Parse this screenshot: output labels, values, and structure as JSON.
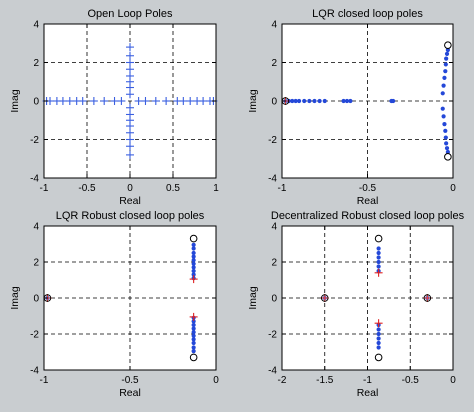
{
  "figure": {
    "background": "#c9cdd0"
  },
  "chart_data": [
    {
      "type": "scatter",
      "title": "Open Loop Poles",
      "xlabel": "Real",
      "ylabel": "Imag",
      "xlim": [
        -1,
        1
      ],
      "ylim": [
        -4,
        4
      ],
      "xticks": [
        -1,
        -0.5,
        0,
        0.5,
        1
      ],
      "xtick_labels": [
        "-1",
        "-0.5",
        "0",
        "0.5",
        "1"
      ],
      "yticks": [
        -4,
        -2,
        0,
        2,
        4
      ],
      "ytick_labels": [
        "-4",
        "-2",
        "0",
        "2",
        "4"
      ],
      "grid": true,
      "series": [
        {
          "marker": "plus",
          "color": "#3a5fe0",
          "points": [
            [
              -0.97,
              0
            ],
            [
              -0.93,
              0
            ],
            [
              -0.85,
              0
            ],
            [
              -0.78,
              0
            ],
            [
              -0.7,
              0
            ],
            [
              -0.62,
              0
            ],
            [
              -0.55,
              0
            ],
            [
              -0.42,
              0
            ],
            [
              -0.3,
              0
            ],
            [
              -0.18,
              0
            ],
            [
              -0.1,
              0
            ],
            [
              0.1,
              0
            ],
            [
              0.18,
              0
            ],
            [
              0.3,
              0
            ],
            [
              0.42,
              0
            ],
            [
              0.55,
              0
            ],
            [
              0.62,
              0
            ],
            [
              0.7,
              0
            ],
            [
              0.78,
              0
            ],
            [
              0.85,
              0
            ],
            [
              0.93,
              0
            ],
            [
              0.97,
              0
            ],
            [
              0,
              0.35
            ],
            [
              0,
              0.7
            ],
            [
              0,
              1.0
            ],
            [
              0,
              1.3
            ],
            [
              0,
              1.65
            ],
            [
              0,
              2.0
            ],
            [
              0,
              2.35
            ],
            [
              0,
              2.8
            ],
            [
              0,
              -0.35
            ],
            [
              0,
              -0.7
            ],
            [
              0,
              -1.0
            ],
            [
              0,
              -1.3
            ],
            [
              0,
              -1.65
            ],
            [
              0,
              -2.0
            ],
            [
              0,
              -2.35
            ],
            [
              0,
              -2.8
            ]
          ]
        }
      ]
    },
    {
      "type": "scatter",
      "title": "LQR closed loop poles",
      "xlabel": "Real",
      "ylabel": "Imag",
      "xlim": [
        -1,
        0
      ],
      "ylim": [
        -4,
        4
      ],
      "xticks": [
        -1,
        -0.5,
        0
      ],
      "xtick_labels": [
        "-1",
        "-0.5",
        "0"
      ],
      "yticks": [
        -4,
        -2,
        0,
        2,
        4
      ],
      "ytick_labels": [
        "-4",
        "-2",
        "0",
        "2",
        "4"
      ],
      "grid": true,
      "series": [
        {
          "marker": "dot",
          "color": "#2448d8",
          "points": [
            [
              -0.98,
              0
            ],
            [
              -0.96,
              0
            ],
            [
              -0.94,
              0
            ],
            [
              -0.92,
              0
            ],
            [
              -0.9,
              0
            ],
            [
              -0.87,
              0
            ],
            [
              -0.84,
              0
            ],
            [
              -0.81,
              0
            ],
            [
              -0.78,
              0
            ],
            [
              -0.75,
              0
            ],
            [
              -0.64,
              0
            ],
            [
              -0.62,
              0
            ],
            [
              -0.6,
              0
            ],
            [
              -0.36,
              0
            ],
            [
              -0.35,
              0
            ],
            [
              -0.06,
              0.4
            ],
            [
              -0.055,
              0.8
            ],
            [
              -0.05,
              1.2
            ],
            [
              -0.045,
              1.55
            ],
            [
              -0.042,
              1.9
            ],
            [
              -0.04,
              2.2
            ],
            [
              -0.035,
              2.45
            ],
            [
              -0.03,
              2.65
            ],
            [
              -0.06,
              -0.4
            ],
            [
              -0.055,
              -0.8
            ],
            [
              -0.05,
              -1.2
            ],
            [
              -0.045,
              -1.55
            ],
            [
              -0.042,
              -1.9
            ],
            [
              -0.04,
              -2.2
            ],
            [
              -0.035,
              -2.45
            ],
            [
              -0.03,
              -2.65
            ]
          ]
        },
        {
          "marker": "plus",
          "color": "#e02020",
          "points": [
            [
              -0.98,
              0
            ]
          ]
        },
        {
          "marker": "circle",
          "color": "#000000",
          "points": [
            [
              -0.98,
              0
            ],
            [
              -0.03,
              2.9
            ],
            [
              -0.03,
              -2.9
            ]
          ]
        }
      ]
    },
    {
      "type": "scatter",
      "title": "LQR Robust closed loop poles",
      "xlabel": "Real",
      "ylabel": "Imag",
      "xlim": [
        -1,
        0
      ],
      "ylim": [
        -4,
        4
      ],
      "xticks": [
        -1,
        -0.5,
        0
      ],
      "xtick_labels": [
        "-1",
        "-0.5",
        "0"
      ],
      "yticks": [
        -4,
        -2,
        0,
        2,
        4
      ],
      "ytick_labels": [
        "-4",
        "-2",
        "0",
        "2",
        "4"
      ],
      "grid": true,
      "series": [
        {
          "marker": "dot",
          "color": "#2448d8",
          "points": [
            [
              -0.98,
              0
            ],
            [
              -0.13,
              1.1
            ],
            [
              -0.13,
              1.3
            ],
            [
              -0.13,
              1.5
            ],
            [
              -0.13,
              1.7
            ],
            [
              -0.13,
              1.9
            ],
            [
              -0.13,
              2.1
            ],
            [
              -0.13,
              2.3
            ],
            [
              -0.13,
              2.5
            ],
            [
              -0.13,
              2.75
            ],
            [
              -0.13,
              2.95
            ],
            [
              -0.13,
              -1.1
            ],
            [
              -0.13,
              -1.3
            ],
            [
              -0.13,
              -1.5
            ],
            [
              -0.13,
              -1.7
            ],
            [
              -0.13,
              -1.9
            ],
            [
              -0.13,
              -2.1
            ],
            [
              -0.13,
              -2.3
            ],
            [
              -0.13,
              -2.5
            ],
            [
              -0.13,
              -2.75
            ],
            [
              -0.13,
              -2.95
            ]
          ]
        },
        {
          "marker": "plus",
          "color": "#e02020",
          "points": [
            [
              -0.98,
              0
            ],
            [
              -0.13,
              1.05
            ],
            [
              -0.13,
              -1.05
            ]
          ]
        },
        {
          "marker": "circle",
          "color": "#000000",
          "points": [
            [
              -0.98,
              0
            ],
            [
              -0.13,
              3.3
            ],
            [
              -0.13,
              -3.3
            ]
          ]
        }
      ]
    },
    {
      "type": "scatter",
      "title": "Decentralized Robust closed loop poles",
      "xlabel": "Real",
      "ylabel": "Imag",
      "xlim": [
        -2,
        0
      ],
      "ylim": [
        -4,
        4
      ],
      "xticks": [
        -2,
        -1.5,
        -1,
        -0.5,
        0
      ],
      "xtick_labels": [
        "-2",
        "-1.5",
        "-1",
        "-0.5",
        "0"
      ],
      "yticks": [
        -4,
        -2,
        0,
        2,
        4
      ],
      "ytick_labels": [
        "-4",
        "-2",
        "0",
        "2",
        "4"
      ],
      "grid": true,
      "series": [
        {
          "marker": "dot",
          "color": "#2448d8",
          "points": [
            [
              -1.5,
              0
            ],
            [
              -0.3,
              0
            ],
            [
              -0.87,
              1.5
            ],
            [
              -0.87,
              1.75
            ],
            [
              -0.87,
              2.0
            ],
            [
              -0.87,
              2.25
            ],
            [
              -0.87,
              2.5
            ],
            [
              -0.87,
              2.75
            ],
            [
              -0.87,
              -1.5
            ],
            [
              -0.87,
              -1.75
            ],
            [
              -0.87,
              -2.0
            ],
            [
              -0.87,
              -2.25
            ],
            [
              -0.87,
              -2.5
            ],
            [
              -0.87,
              -2.75
            ]
          ]
        },
        {
          "marker": "plus",
          "color": "#e02020",
          "points": [
            [
              -1.5,
              0
            ],
            [
              -0.3,
              0
            ],
            [
              -0.87,
              1.4
            ],
            [
              -0.87,
              -1.4
            ]
          ]
        },
        {
          "marker": "circle",
          "color": "#000000",
          "points": [
            [
              -1.5,
              0
            ],
            [
              -0.3,
              0
            ],
            [
              -0.87,
              3.3
            ],
            [
              -0.87,
              -3.3
            ]
          ]
        }
      ]
    }
  ]
}
